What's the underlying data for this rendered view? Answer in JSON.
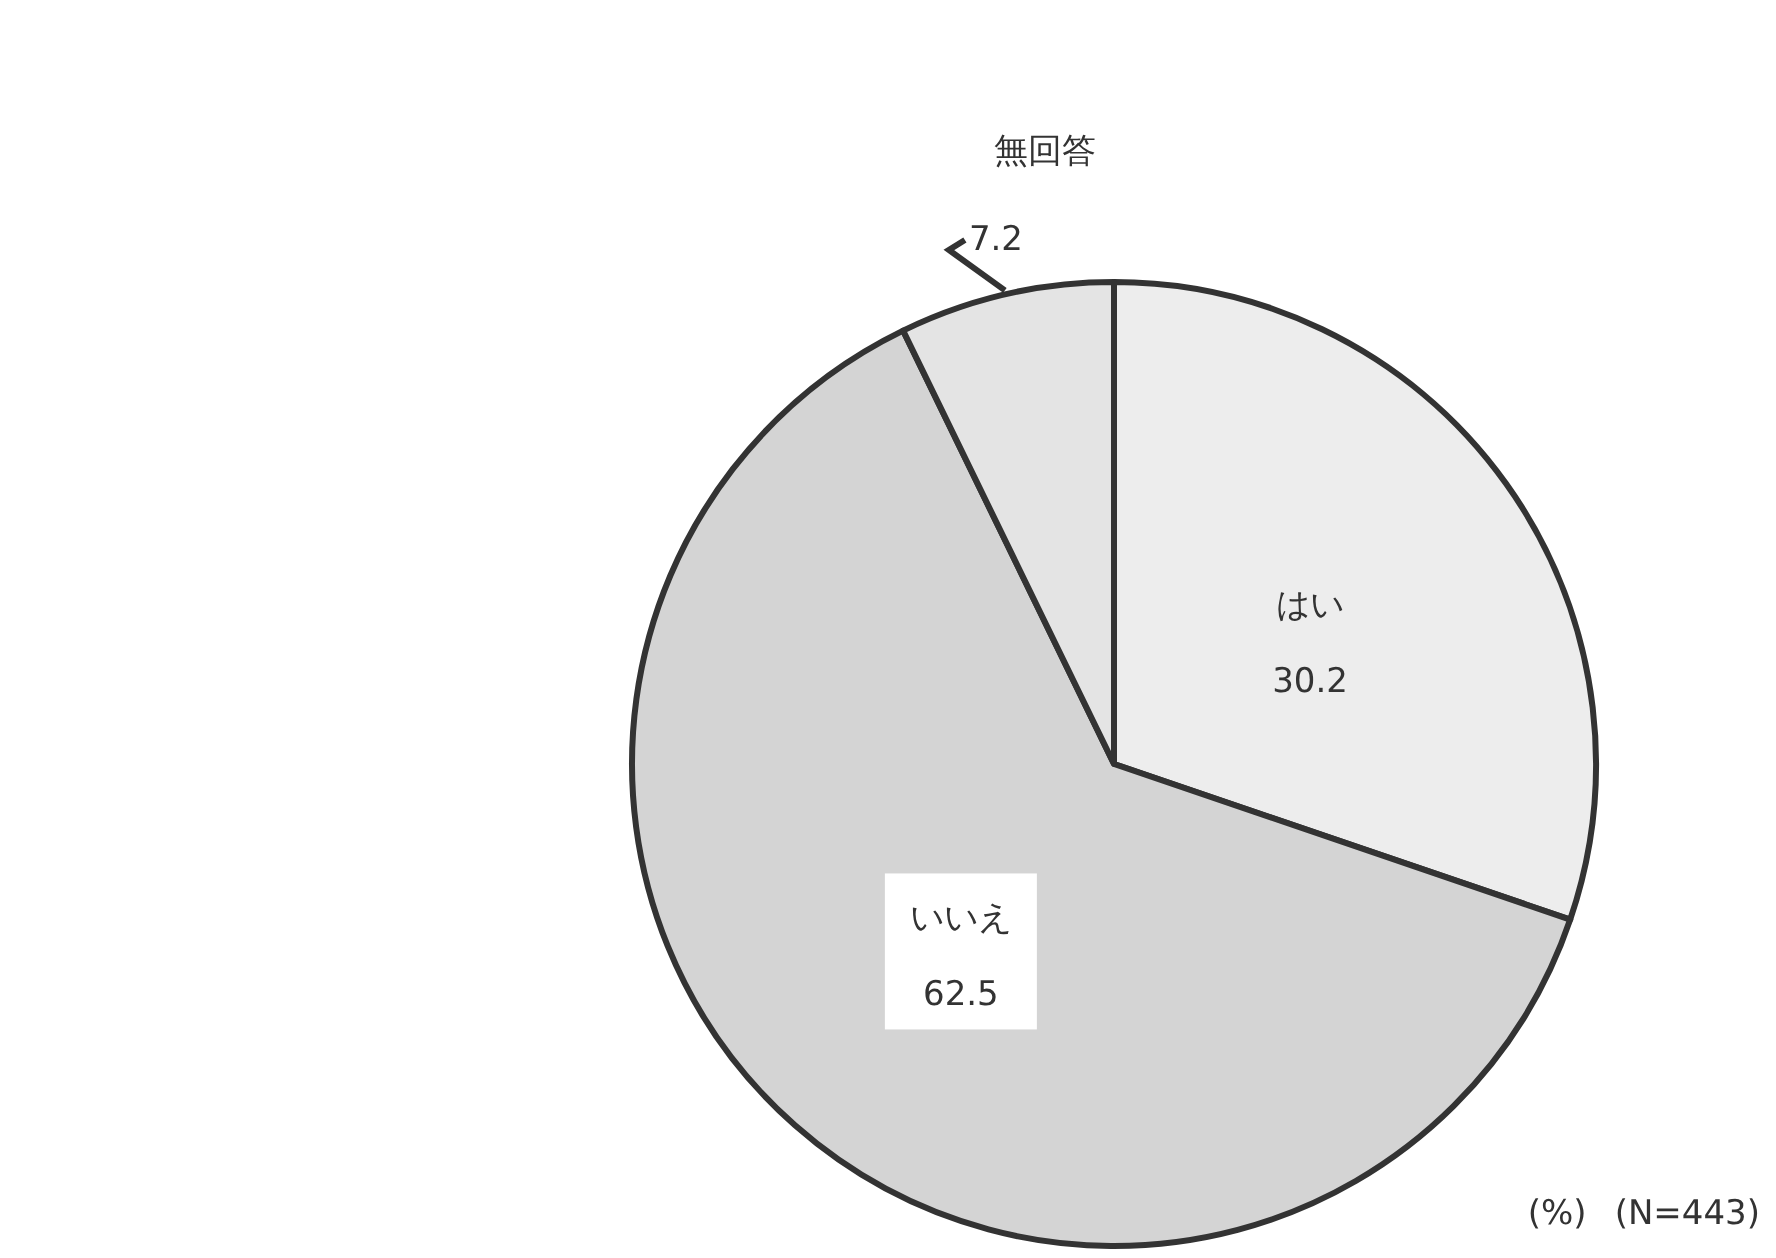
{
  "chart_data": {
    "type": "pie",
    "categories": [
      "はい",
      "いいえ",
      "無回答"
    ],
    "values": [
      30.2,
      62.5,
      7.2
    ],
    "colors": [
      "#ededed",
      "#d4d4d4",
      "#e4e4e4"
    ],
    "data_labels": true,
    "annotations": [
      "(%)",
      "(N=443)"
    ]
  }
}
